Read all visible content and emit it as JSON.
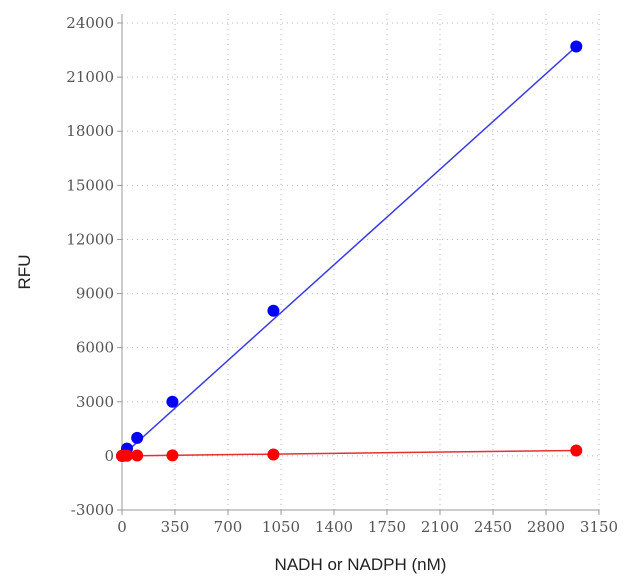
{
  "chart_data": {
    "type": "scatter",
    "xlabel": "NADH or NADPH (nM)",
    "ylabel": "RFU",
    "xlim": [
      0,
      3150
    ],
    "ylim": [
      -3000,
      24500
    ],
    "xticks": [
      0,
      350,
      700,
      1050,
      1400,
      1750,
      2100,
      2450,
      2800,
      3150
    ],
    "yticks": [
      -3000,
      0,
      3000,
      6000,
      9000,
      12000,
      15000,
      18000,
      21000,
      24000
    ],
    "grid": true,
    "series": [
      {
        "color": "#0000ff",
        "line_color": "#3a3ae6",
        "x": [
          0,
          3.7,
          11,
          33,
          100,
          333,
          1000,
          3000
        ],
        "y": [
          0,
          20,
          50,
          400,
          1000,
          3000,
          8050,
          22700
        ],
        "fit": [
          [
            0,
            0
          ],
          [
            3000,
            22700
          ]
        ]
      },
      {
        "color": "#ff0000",
        "line_color": "#e53030",
        "x": [
          0,
          3.7,
          11,
          33,
          100,
          333,
          1000,
          3000
        ],
        "y": [
          0,
          0,
          5,
          10,
          20,
          30,
          80,
          300
        ],
        "fit": [
          [
            0,
            0
          ],
          [
            3000,
            300
          ]
        ]
      }
    ]
  }
}
